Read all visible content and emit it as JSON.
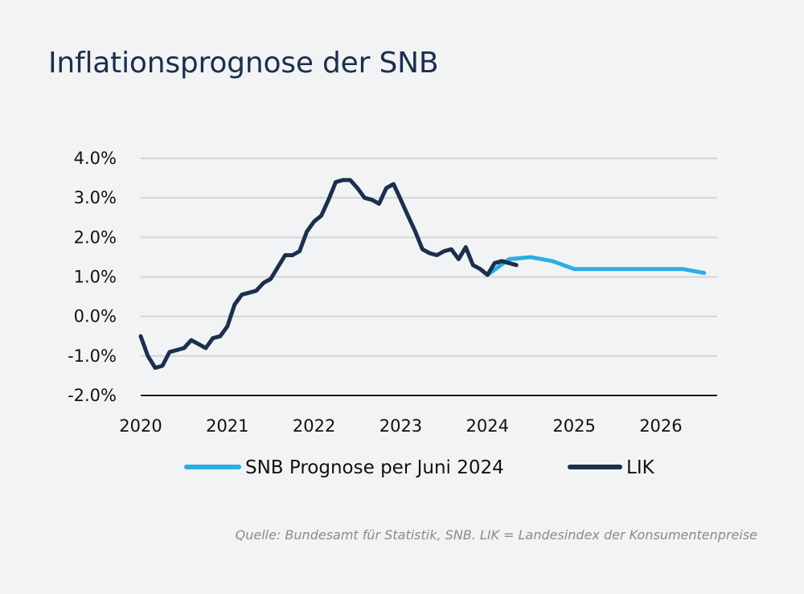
{
  "title": "Inflationsprognose der SNB",
  "source": "Quelle: Bundesamt für Statistik, SNB. LIK = Landesindex der Konsumentenpreise",
  "chart_data": {
    "type": "line",
    "title": "Inflationsprognose der SNB",
    "xlabel": "",
    "ylabel": "",
    "xlim": [
      2020,
      2026.65
    ],
    "ylim": [
      -2.0,
      4.0
    ],
    "grid": true,
    "legend_position": "bottom",
    "x_ticks": [
      2020,
      2021,
      2022,
      2023,
      2024,
      2025,
      2026
    ],
    "x_tick_labels": [
      "2020",
      "2021",
      "2022",
      "2023",
      "2024",
      "2025",
      "2026"
    ],
    "y_ticks": [
      -2,
      -1,
      0,
      1,
      2,
      3,
      4
    ],
    "y_tick_labels": [
      "-2.0%",
      "-1.0%",
      "0.0%",
      "1.0%",
      "2.0%",
      "3.0%",
      "4.0%"
    ],
    "series": [
      {
        "name": "SNB Prognose per Juni 2024",
        "color": "#2aaee6",
        "x": [
          2024.0,
          2024.25,
          2024.5,
          2024.75,
          2025.0,
          2025.25,
          2025.5,
          2025.75,
          2026.0,
          2026.25,
          2026.5
        ],
        "values": [
          1.05,
          1.45,
          1.5,
          1.4,
          1.2,
          1.2,
          1.2,
          1.2,
          1.2,
          1.2,
          1.1
        ]
      },
      {
        "name": "LIK",
        "color": "#1c2f4d",
        "x": [
          2020.0,
          2020.083,
          2020.167,
          2020.25,
          2020.333,
          2020.417,
          2020.5,
          2020.583,
          2020.667,
          2020.75,
          2020.833,
          2020.917,
          2021.0,
          2021.083,
          2021.167,
          2021.25,
          2021.333,
          2021.417,
          2021.5,
          2021.583,
          2021.667,
          2021.75,
          2021.833,
          2021.917,
          2022.0,
          2022.083,
          2022.167,
          2022.25,
          2022.333,
          2022.417,
          2022.5,
          2022.583,
          2022.667,
          2022.75,
          2022.833,
          2022.917,
          2023.0,
          2023.083,
          2023.167,
          2023.25,
          2023.333,
          2023.417,
          2023.5,
          2023.583,
          2023.667,
          2023.75,
          2023.833,
          2023.917,
          2024.0,
          2024.083,
          2024.167,
          2024.25,
          2024.333
        ],
        "values": [
          -0.5,
          -1.0,
          -1.3,
          -1.25,
          -0.9,
          -0.85,
          -0.8,
          -0.6,
          -0.7,
          -0.8,
          -0.55,
          -0.5,
          -0.25,
          0.3,
          0.55,
          0.6,
          0.65,
          0.85,
          0.95,
          1.25,
          1.55,
          1.55,
          1.65,
          2.15,
          2.4,
          2.55,
          2.95,
          3.4,
          3.45,
          3.45,
          3.25,
          3.0,
          2.95,
          2.85,
          3.25,
          3.35,
          2.95,
          2.55,
          2.15,
          1.7,
          1.6,
          1.55,
          1.65,
          1.7,
          1.45,
          1.75,
          1.3,
          1.2,
          1.05,
          1.35,
          1.4,
          1.35,
          1.3
        ]
      }
    ]
  }
}
